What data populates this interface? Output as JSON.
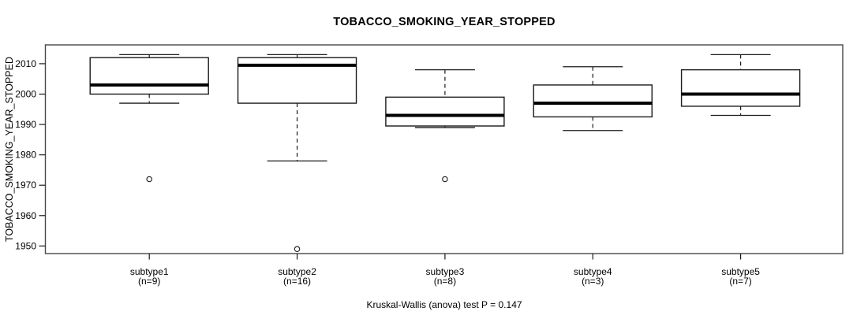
{
  "chart_data": {
    "type": "boxplot",
    "title": "TOBACCO_SMOKING_YEAR_STOPPED",
    "ylabel": "TOBACCO_SMOKING_YEAR_STOPPED",
    "xlabel": "",
    "footnote": "Kruskal-Wallis (anova) test P = 0.147",
    "grid": false,
    "legend": "none",
    "ylim": [
      1947.5,
      2016.2
    ],
    "y_ticks": [
      2010,
      2000,
      1990,
      1980,
      1970,
      1960,
      1950
    ],
    "categories": [
      "subtype1",
      "subtype2",
      "subtype3",
      "subtype4",
      "subtype5"
    ],
    "category_counts": [
      "(n=9)",
      "(n=16)",
      "(n=8)",
      "(n=3)",
      "(n=7)"
    ],
    "series": [
      {
        "name": "subtype1",
        "n": 9,
        "whisker_low": 1997,
        "q1": 2000,
        "median": 2003,
        "q3": 2012,
        "whisker_high": 2013,
        "outliers": [
          1972
        ]
      },
      {
        "name": "subtype2",
        "n": 16,
        "whisker_low": 1978,
        "q1": 1997,
        "median": 2009.5,
        "q3": 2012,
        "whisker_high": 2013,
        "outliers": [
          1949
        ]
      },
      {
        "name": "subtype3",
        "n": 8,
        "whisker_low": 1989,
        "q1": 1989.5,
        "median": 1993,
        "q3": 1999,
        "whisker_high": 2008,
        "outliers": [
          1972
        ]
      },
      {
        "name": "subtype4",
        "n": 3,
        "whisker_low": 1988,
        "q1": 1992.5,
        "median": 1997,
        "q3": 2003,
        "whisker_high": 2009,
        "outliers": []
      },
      {
        "name": "subtype5",
        "n": 7,
        "whisker_low": 1993,
        "q1": 1996,
        "median": 2000,
        "q3": 2008,
        "whisker_high": 2013,
        "outliers": []
      }
    ]
  },
  "colors": {
    "background": "#ffffff",
    "frame": "#474747",
    "line": "#1a1a1a",
    "median": "#000000",
    "box_fill": "#ffffff",
    "text": "#000000"
  }
}
